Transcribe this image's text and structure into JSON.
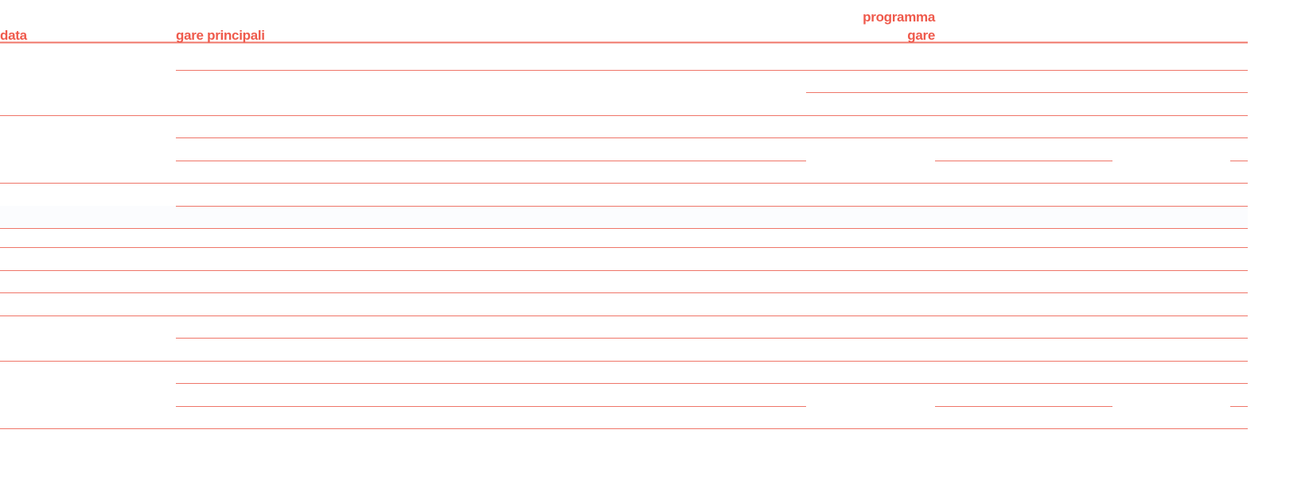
{
  "header": {
    "columns": [
      "data",
      "gare principali",
      "programma gare"
    ]
  }
}
